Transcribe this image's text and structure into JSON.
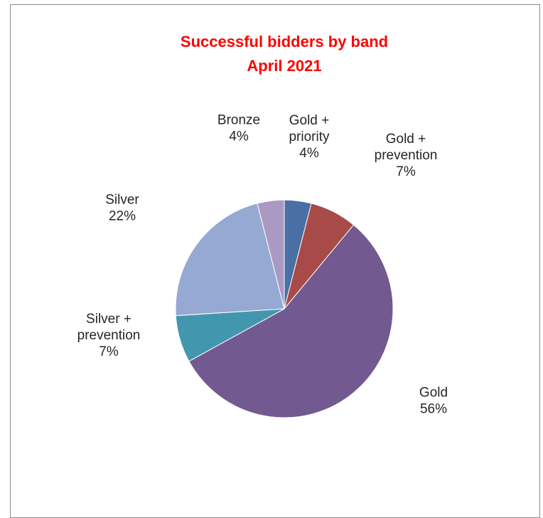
{
  "chart_data": {
    "type": "pie",
    "title": "Successful bidders by band",
    "subtitle": "April 2021",
    "slices": [
      {
        "name": [
          "Gold +",
          "priority"
        ],
        "percent_label": "4%",
        "value": 4,
        "color": "#4a6fa5"
      },
      {
        "name": [
          "Gold +",
          "prevention"
        ],
        "percent_label": "7%",
        "value": 7,
        "color": "#a84a47"
      },
      {
        "name": [
          "Gold"
        ],
        "percent_label": "56%",
        "value": 56,
        "color": "#725a90"
      },
      {
        "name": [
          "Silver +",
          "prevention"
        ],
        "percent_label": "7%",
        "value": 7,
        "color": "#4297ae"
      },
      {
        "name": [
          "Silver"
        ],
        "percent_label": "22%",
        "value": 22,
        "color": "#95a9d2"
      },
      {
        "name": [
          "Bronze"
        ],
        "percent_label": "4%",
        "value": 4,
        "color": "#aa9ac3"
      }
    ],
    "start_angle_deg": 0,
    "direction": "clockwise",
    "legend": "none",
    "data_labels": "outside"
  }
}
